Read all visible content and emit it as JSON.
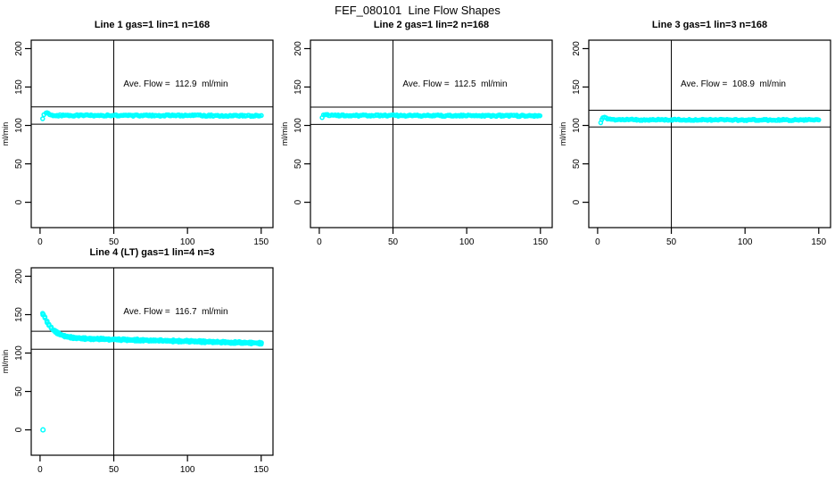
{
  "page": {
    "title": "FEF_080101  Line Flow Shapes"
  },
  "chart_data": [
    {
      "type": "scatter",
      "title": "Line 1 gas=1 lin=1 n=168",
      "n": 168,
      "annotation": "Ave. Flow =  112.9  ml/min",
      "ave_flow": 112.9,
      "ylabel": "ml/min",
      "xlabel": "",
      "xlim": [
        0,
        157
      ],
      "ylim": [
        0,
        200
      ],
      "xlim_draw": [
        -6,
        158
      ],
      "ylim_draw": [
        -33,
        211
      ],
      "xticks": [
        0,
        50,
        100,
        150
      ],
      "yticks": [
        0,
        50,
        100,
        150,
        200
      ],
      "grid": false,
      "legend": false,
      "vline_x": 50,
      "hlines": [
        101.6,
        124.2
      ],
      "marker_color": "#00ffff",
      "x_start": 2,
      "x_end": 150,
      "runs": 1,
      "markers_per_run": 168,
      "jitter": 0.9,
      "points": [
        [
          2,
          109.5
        ],
        [
          2.6,
          113
        ],
        [
          3.2,
          116
        ],
        [
          4,
          116.8
        ],
        [
          5,
          116.2
        ],
        [
          6,
          114.8
        ],
        [
          7,
          113.8
        ],
        [
          9,
          113.2
        ],
        [
          12,
          113.0
        ],
        [
          20,
          113.0
        ],
        [
          40,
          113.1
        ],
        [
          70,
          112.9
        ],
        [
          100,
          112.8
        ],
        [
          130,
          112.7
        ],
        [
          150,
          112.6
        ]
      ],
      "outliers": []
    },
    {
      "type": "scatter",
      "title": "Line 2 gas=1 lin=2 n=168",
      "n": 168,
      "annotation": "Ave. Flow =  112.5  ml/min",
      "ave_flow": 112.5,
      "ylabel": "ml/min",
      "xlabel": "",
      "xlim": [
        0,
        157
      ],
      "ylim": [
        0,
        200
      ],
      "xlim_draw": [
        -6,
        158
      ],
      "ylim_draw": [
        -33,
        211
      ],
      "xticks": [
        0,
        50,
        100,
        150
      ],
      "yticks": [
        0,
        50,
        100,
        150,
        200
      ],
      "grid": false,
      "legend": false,
      "vline_x": 50,
      "hlines": [
        101.3,
        123.8
      ],
      "marker_color": "#00ffff",
      "x_start": 2,
      "x_end": 150,
      "runs": 1,
      "markers_per_run": 168,
      "jitter": 0.9,
      "points": [
        [
          2,
          110
        ],
        [
          3,
          113.5
        ],
        [
          4,
          114.8
        ],
        [
          5,
          114.6
        ],
        [
          6,
          113.8
        ],
        [
          8,
          113.2
        ],
        [
          12,
          112.9
        ],
        [
          30,
          112.9
        ],
        [
          60,
          112.8
        ],
        [
          100,
          112.7
        ],
        [
          150,
          112.5
        ]
      ],
      "outliers": []
    },
    {
      "type": "scatter",
      "title": "Line 3 gas=1 lin=3 n=168",
      "n": 168,
      "annotation": "Ave. Flow =  108.9  ml/min",
      "ave_flow": 108.9,
      "ylabel": "ml/min",
      "xlabel": "",
      "xlim": [
        0,
        157
      ],
      "ylim": [
        0,
        200
      ],
      "xlim_draw": [
        -6,
        158
      ],
      "ylim_draw": [
        -33,
        211
      ],
      "xticks": [
        0,
        50,
        100,
        150
      ],
      "yticks": [
        0,
        50,
        100,
        150,
        200
      ],
      "grid": false,
      "legend": false,
      "vline_x": 50,
      "hlines": [
        98.0,
        119.8
      ],
      "marker_color": "#00ffff",
      "x_start": 2,
      "x_end": 150,
      "runs": 1,
      "markers_per_run": 168,
      "jitter": 0.9,
      "points": [
        [
          2,
          103.5
        ],
        [
          2.6,
          107
        ],
        [
          3.2,
          109.5
        ],
        [
          4,
          110.3
        ],
        [
          5,
          109.8
        ],
        [
          6,
          108.8
        ],
        [
          8,
          108
        ],
        [
          12,
          107.6
        ],
        [
          25,
          107.4
        ],
        [
          60,
          107.3
        ],
        [
          100,
          107.2
        ],
        [
          150,
          107.1
        ]
      ],
      "outliers": []
    },
    {
      "type": "scatter",
      "title": "Line 4 (LT) gas=1 lin=4 n=3",
      "n": 3,
      "annotation": "Ave. Flow =  116.7  ml/min",
      "ave_flow": 116.7,
      "ylabel": "ml/min",
      "xlabel": "",
      "xlim": [
        0,
        157
      ],
      "ylim": [
        0,
        200
      ],
      "xlim_draw": [
        -6,
        158
      ],
      "ylim_draw": [
        -33,
        211
      ],
      "xticks": [
        0,
        50,
        100,
        150
      ],
      "yticks": [
        0,
        50,
        100,
        150,
        200
      ],
      "grid": false,
      "legend": false,
      "vline_x": 50,
      "hlines": [
        105.0,
        128.4
      ],
      "marker_color": "#00ffff",
      "x_start": 2,
      "x_end": 150,
      "runs": 3,
      "markers_per_run": 110,
      "jitter": 0.7,
      "points": [
        [
          2,
          151
        ],
        [
          3,
          147.5
        ],
        [
          4,
          143.5
        ],
        [
          5,
          140
        ],
        [
          6,
          137
        ],
        [
          7,
          134.3
        ],
        [
          8,
          132
        ],
        [
          9,
          130.2
        ],
        [
          10,
          128.6
        ],
        [
          11,
          127.2
        ],
        [
          12,
          126
        ],
        [
          14,
          124.2
        ],
        [
          16,
          122.7
        ],
        [
          18,
          121.6
        ],
        [
          20,
          120.7
        ],
        [
          23,
          119.9
        ],
        [
          26,
          119.4
        ],
        [
          30,
          119.0
        ],
        [
          36,
          118.5
        ],
        [
          44,
          118.0
        ],
        [
          52,
          117.6
        ],
        [
          62,
          117.1
        ],
        [
          75,
          116.5
        ],
        [
          90,
          115.8
        ],
        [
          105,
          115.1
        ],
        [
          120,
          114.3
        ],
        [
          135,
          113.6
        ],
        [
          150,
          112.9
        ]
      ],
      "outliers": [
        [
          2,
          0
        ]
      ]
    }
  ]
}
